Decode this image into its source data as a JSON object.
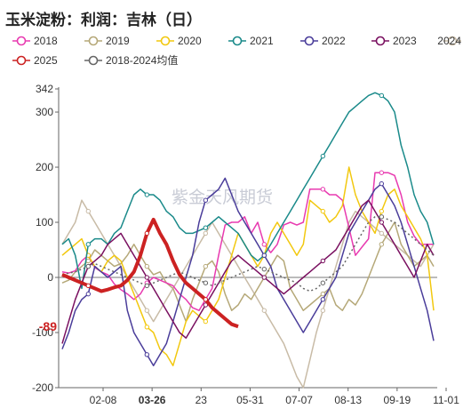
{
  "chart_data": {
    "type": "line",
    "title": "玉米淀粉：利润：吉林（日）",
    "watermark": "紫金天风期货",
    "x_ticks": [
      "02-08",
      "03-26",
      "23",
      "05-31",
      "07-07",
      "08-13",
      "09-19",
      "11-01"
    ],
    "highlight_x_tick": "03-26",
    "y_ticks": [
      342,
      300,
      200,
      100,
      0,
      -100,
      -200
    ],
    "highlight_y_value": -89,
    "ylim": [
      -200,
      342
    ],
    "legend_position": "top",
    "highlight_color": "#cc2222",
    "series": [
      {
        "name": "2018",
        "color": "#e83ab0",
        "marker": "circle-open",
        "values": [
          10,
          8,
          12,
          30,
          40,
          18,
          10,
          5,
          -12,
          -22,
          -30,
          -40,
          -30,
          -10,
          0,
          -5,
          -10,
          -15,
          -30,
          -40,
          -55,
          -60,
          -40,
          -20,
          40,
          95,
          100,
          100,
          110,
          80,
          100,
          60,
          45,
          60,
          95,
          100,
          95,
          100,
          160,
          160,
          160,
          150,
          150,
          140,
          90,
          40,
          55,
          70,
          190,
          190,
          190,
          185,
          150,
          100,
          75,
          60,
          60,
          60
        ]
      },
      {
        "name": "2019",
        "color": "#b5a878",
        "marker": "circle-open",
        "values": [
          -10,
          -5,
          10,
          20,
          30,
          50,
          40,
          30,
          20,
          25,
          40,
          60,
          40,
          20,
          5,
          10,
          -10,
          -20,
          -50,
          -80,
          -40,
          -10,
          20,
          30,
          10,
          -30,
          -60,
          -50,
          -30,
          -40,
          -20,
          0,
          20,
          40,
          30,
          -20,
          -40,
          -60,
          -50,
          -40,
          -30,
          -20,
          -50,
          -60,
          -40,
          -50,
          -30,
          0,
          30,
          60,
          80,
          100,
          60,
          40,
          20,
          30,
          40,
          20
        ]
      },
      {
        "name": "2020",
        "color": "#f2c80f",
        "marker": "circle-open",
        "values": [
          40,
          50,
          60,
          70,
          40,
          20,
          10,
          30,
          40,
          30,
          0,
          -30,
          -60,
          -90,
          -100,
          -130,
          -140,
          -160,
          -120,
          -80,
          -60,
          -70,
          -80,
          -60,
          -40,
          0,
          40,
          80,
          60,
          40,
          20,
          40,
          80,
          100,
          80,
          60,
          40,
          60,
          140,
          130,
          120,
          100,
          110,
          130,
          200,
          150,
          120,
          100,
          80,
          120,
          150,
          160,
          130,
          110,
          90,
          70,
          40,
          -60
        ]
      },
      {
        "name": "2021",
        "color": "#1a8a8a",
        "marker": "circle-open",
        "values": [
          60,
          70,
          40,
          -20,
          60,
          70,
          70,
          60,
          80,
          90,
          120,
          150,
          160,
          150,
          150,
          140,
          120,
          110,
          90,
          80,
          80,
          85,
          90,
          100,
          110,
          100,
          90,
          80,
          60,
          40,
          30,
          40,
          60,
          80,
          100,
          120,
          140,
          160,
          180,
          200,
          220,
          240,
          260,
          280,
          300,
          310,
          320,
          330,
          335,
          330,
          320,
          300,
          240,
          200,
          150,
          120,
          100,
          60
        ]
      },
      {
        "name": "2022",
        "color": "#4a3d9a",
        "marker": "circle-open",
        "values": [
          -130,
          -100,
          -60,
          -40,
          -30,
          20,
          10,
          0,
          10,
          20,
          -60,
          -100,
          -120,
          -140,
          -160,
          -140,
          -120,
          -80,
          -40,
          0,
          40,
          100,
          140,
          150,
          160,
          180,
          150,
          120,
          100,
          80,
          60,
          40,
          20,
          -20,
          -40,
          -60,
          -80,
          -100,
          -80,
          -60,
          -40,
          -20,
          0,
          40,
          80,
          100,
          120,
          140,
          160,
          170,
          150,
          130,
          100,
          60,
          20,
          -20,
          -60,
          -115
        ]
      },
      {
        "name": "2023",
        "color": "#7a1060",
        "marker": "circle-open",
        "values": [
          -120,
          -80,
          -40,
          -10,
          20,
          30,
          40,
          60,
          70,
          80,
          60,
          40,
          20,
          0,
          -20,
          -40,
          -60,
          -80,
          -100,
          -110,
          -90,
          -70,
          -50,
          -30,
          -10,
          10,
          30,
          40,
          30,
          20,
          10,
          0,
          -10,
          -20,
          -30,
          -20,
          -10,
          0,
          10,
          20,
          30,
          40,
          50,
          70,
          90,
          110,
          130,
          140,
          120,
          100,
          80,
          60,
          40,
          20,
          0,
          30,
          60,
          40
        ]
      },
      {
        "name": "2024",
        "color": "#c8bba6",
        "marker": "circle-open",
        "values": [
          60,
          80,
          100,
          140,
          120,
          100,
          80,
          60,
          40,
          20,
          0,
          -20,
          -40,
          -60,
          -80,
          -60,
          -40,
          -20,
          0,
          20,
          40,
          60,
          80,
          100,
          80,
          60,
          40,
          20,
          0,
          -20,
          -40,
          -60,
          -80,
          -100,
          -120,
          -150,
          -180,
          -200,
          -150,
          -100,
          -60,
          -20,
          20,
          60,
          100,
          120,
          110,
          100,
          90,
          80,
          70,
          60,
          50,
          40,
          30,
          20,
          40,
          60
        ]
      },
      {
        "name": "2025",
        "color": "#cc2222",
        "marker": "circle-open",
        "values": [
          5,
          0,
          -5,
          -10,
          -15,
          -20,
          -25,
          -22,
          -18,
          -15,
          -5,
          10,
          40,
          80,
          105,
          80,
          60,
          30,
          5,
          -10,
          -20,
          -30,
          -40,
          -55,
          -65,
          -75,
          -85,
          -89
        ]
      },
      {
        "name": "2018-2024均值",
        "color": "#666666",
        "marker": "circle-open",
        "dashed": true,
        "values": [
          5,
          8,
          10,
          15,
          20,
          25,
          20,
          15,
          10,
          5,
          0,
          -5,
          -10,
          -15,
          -10,
          -5,
          0,
          5,
          10,
          5,
          0,
          -5,
          -10,
          -15,
          -10,
          -5,
          0,
          5,
          10,
          15,
          20,
          15,
          10,
          5,
          0,
          -5,
          -10,
          -20,
          -25,
          -20,
          -10,
          0,
          10,
          20,
          40,
          60,
          80,
          100,
          110,
          110,
          105,
          100,
          90,
          80,
          70,
          60,
          50,
          40
        ]
      }
    ]
  }
}
